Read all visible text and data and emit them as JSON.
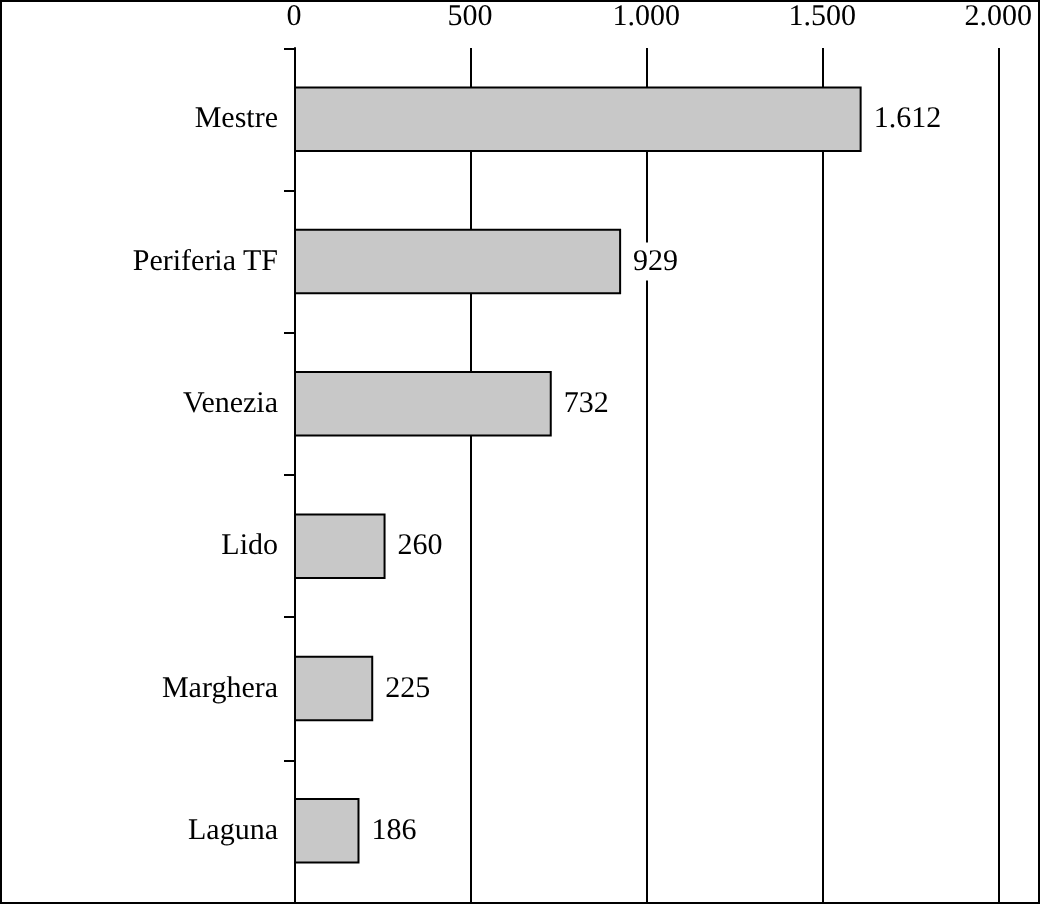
{
  "chart_data": {
    "type": "bar",
    "orientation": "horizontal",
    "categories": [
      "Mestre",
      "Periferia TF",
      "Venezia",
      "Lido",
      "Marghera",
      "Laguna"
    ],
    "values": [
      1612,
      929,
      732,
      260,
      225,
      186
    ],
    "value_labels": [
      "1.612",
      "929",
      "732",
      "260",
      "225",
      "186"
    ],
    "color": "#c8c8c8",
    "xlim": [
      0,
      2000
    ],
    "xticks": [
      0,
      500,
      {
        "value": 1000,
        "label": "1.000"
      },
      {
        "value": 1500,
        "label": "1.500"
      },
      {
        "value": 2000,
        "label": "2.000"
      }
    ],
    "grid": "x"
  }
}
